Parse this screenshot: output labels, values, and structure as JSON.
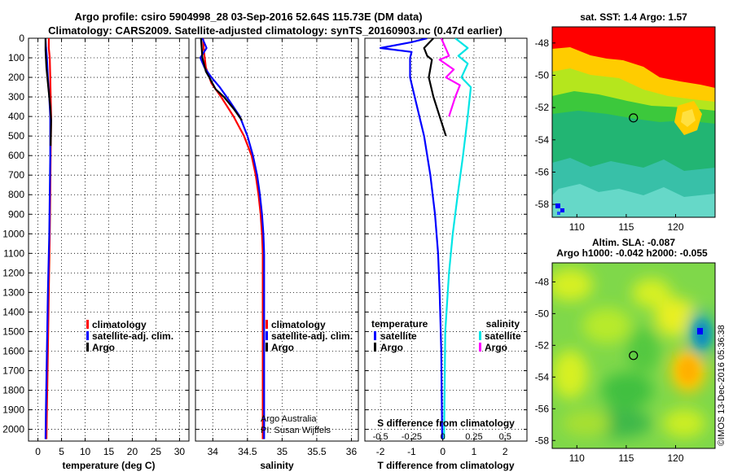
{
  "title_line1": "Argo profile: csiro 5904998_28 03-Sep-2016 52.64S 115.73E (DM data)",
  "title_line2": "Climatology: CARS2009. Satellite-adjusted climatology: synTS_20160903.nc (0.47d earlier)",
  "colors": {
    "climatology": "#ff0000",
    "satellite": "#0000ff",
    "argo": "#000000",
    "sat_salinity": "#00e5e5",
    "argo_salinity": "#ff00ff"
  },
  "depth_ticks": [
    0,
    100,
    200,
    300,
    400,
    500,
    600,
    700,
    800,
    900,
    1000,
    1100,
    1200,
    1300,
    1400,
    1500,
    1600,
    1700,
    1800,
    1900,
    2000
  ],
  "chart_data": [
    {
      "type": "line",
      "id": "temperature",
      "xlabel": "temperature (deg C)",
      "xlim": [
        -2,
        32
      ],
      "ylim": [
        2060,
        0
      ],
      "xticks": [
        0,
        5,
        10,
        15,
        20,
        25,
        30
      ],
      "xtick_labels": [
        "0",
        "5",
        "10",
        "15",
        "20",
        "25",
        "30"
      ],
      "legend": [
        "climatology",
        "satellite-adj. clim.",
        "Argo"
      ],
      "series": [
        {
          "name": "climatology",
          "color": "#ff0000",
          "points": [
            [
              2.3,
              0
            ],
            [
              2.3,
              50
            ],
            [
              2.5,
              100
            ],
            [
              2.6,
              200
            ],
            [
              2.7,
              300
            ],
            [
              2.8,
              400
            ],
            [
              2.7,
              600
            ],
            [
              2.6,
              800
            ],
            [
              2.5,
              1000
            ],
            [
              2.3,
              1300
            ],
            [
              2.1,
              1600
            ],
            [
              1.9,
              1900
            ],
            [
              1.8,
              2050
            ]
          ]
        },
        {
          "name": "satellite-adj. clim.",
          "color": "#0000ff",
          "points": [
            [
              1.6,
              0
            ],
            [
              1.7,
              40
            ],
            [
              1.9,
              100
            ],
            [
              2.1,
              200
            ],
            [
              2.4,
              300
            ],
            [
              2.6,
              400
            ],
            [
              2.6,
              600
            ],
            [
              2.5,
              800
            ],
            [
              2.4,
              1000
            ],
            [
              2.1,
              1300
            ],
            [
              1.9,
              1600
            ],
            [
              1.7,
              1900
            ],
            [
              1.6,
              2050
            ]
          ]
        },
        {
          "name": "Argo",
          "color": "#000000",
          "points": [
            [
              1.6,
              0
            ],
            [
              1.6,
              60
            ],
            [
              1.8,
              150
            ],
            [
              2.2,
              250
            ],
            [
              2.6,
              350
            ],
            [
              2.8,
              420
            ],
            [
              2.7,
              550
            ]
          ]
        }
      ]
    },
    {
      "type": "line",
      "id": "salinity",
      "xlabel": "salinity",
      "xlim": [
        33.75,
        36.1
      ],
      "ylim": [
        2060,
        0
      ],
      "xticks": [
        34,
        34.5,
        35,
        35.5,
        36
      ],
      "xtick_labels": [
        "34",
        "34.5",
        "35",
        "35.5",
        "36"
      ],
      "legend": [
        "climatology",
        "satellite-adj. clim.",
        "Argo"
      ],
      "credit": [
        "Argo Australia",
        "PI: Susan Wijffels"
      ],
      "series": [
        {
          "name": "climatology",
          "color": "#ff0000",
          "points": [
            [
              33.86,
              0
            ],
            [
              33.87,
              60
            ],
            [
              33.9,
              150
            ],
            [
              33.98,
              230
            ],
            [
              34.12,
              300
            ],
            [
              34.3,
              400
            ],
            [
              34.45,
              500
            ],
            [
              34.56,
              600
            ],
            [
              34.62,
              700
            ],
            [
              34.66,
              800
            ],
            [
              34.69,
              900
            ],
            [
              34.71,
              1000
            ],
            [
              34.72,
              1100
            ],
            [
              34.72,
              1500
            ],
            [
              34.72,
              2050
            ]
          ]
        },
        {
          "name": "satellite-adj. clim.",
          "color": "#0000ff",
          "points": [
            [
              33.85,
              0
            ],
            [
              33.91,
              50
            ],
            [
              33.82,
              100
            ],
            [
              33.88,
              150
            ],
            [
              33.98,
              200
            ],
            [
              34.1,
              250
            ],
            [
              34.24,
              320
            ],
            [
              34.39,
              400
            ],
            [
              34.5,
              500
            ],
            [
              34.58,
              600
            ],
            [
              34.64,
              700
            ],
            [
              34.68,
              800
            ],
            [
              34.71,
              900
            ],
            [
              34.73,
              1000
            ],
            [
              34.74,
              1100
            ],
            [
              34.74,
              1500
            ],
            [
              34.74,
              2050
            ]
          ]
        },
        {
          "name": "Argo",
          "color": "#000000",
          "points": [
            [
              33.83,
              0
            ],
            [
              33.85,
              100
            ],
            [
              33.9,
              170
            ],
            [
              33.95,
              200
            ],
            [
              34.04,
              260
            ],
            [
              34.16,
              300
            ],
            [
              34.3,
              360
            ],
            [
              34.42,
              420
            ]
          ]
        }
      ]
    },
    {
      "type": "line",
      "id": "difference",
      "xlabel": "T difference from climatology",
      "xlabel_top": "S difference from climatology",
      "xlim": [
        -2.5,
        2.7
      ],
      "ylim": [
        2060,
        0
      ],
      "xticks": [
        -2,
        -1,
        0,
        1,
        2
      ],
      "xtick_labels": [
        "-2",
        "-1",
        "0",
        "1",
        "2"
      ],
      "top_ticks": [
        -0.5,
        -0.25,
        0,
        0.25,
        0.5
      ],
      "top_tick_labels": [
        "-0.5",
        "-0.25",
        "0",
        "0.25",
        "0.5"
      ],
      "top_scale": 4,
      "legend_temperature": {
        "title": "temperature",
        "items": [
          "satellite",
          "Argo"
        ]
      },
      "legend_salinity": {
        "title": "salinity",
        "items": [
          "satellite",
          "Argo"
        ]
      },
      "series": [
        {
          "name": "T satellite",
          "color": "#0000ff",
          "points": [
            [
              -0.5,
              0
            ],
            [
              -1.0,
              20
            ],
            [
              -2.0,
              50
            ],
            [
              -1.0,
              70
            ],
            [
              -1.05,
              100
            ],
            [
              -1.05,
              200
            ],
            [
              -0.9,
              300
            ],
            [
              -0.6,
              500
            ],
            [
              -0.4,
              700
            ],
            [
              -0.25,
              900
            ],
            [
              -0.15,
              1100
            ],
            [
              -0.1,
              1300
            ],
            [
              -0.05,
              1600
            ],
            [
              -0.02,
              2050
            ]
          ]
        },
        {
          "name": "T Argo",
          "color": "#000000",
          "points": [
            [
              -0.3,
              0
            ],
            [
              -0.6,
              50
            ],
            [
              -0.5,
              90
            ],
            [
              -0.35,
              110
            ],
            [
              -0.45,
              200
            ],
            [
              -0.3,
              300
            ],
            [
              -0.1,
              400
            ],
            [
              0.1,
              500
            ]
          ]
        },
        {
          "name": "S satellite",
          "color": "#00e5e5",
          "points": [
            [
              0.4,
              0
            ],
            [
              0.8,
              50
            ],
            [
              0.5,
              90
            ],
            [
              0.8,
              130
            ],
            [
              0.6,
              200
            ],
            [
              0.9,
              250
            ],
            [
              0.8,
              400
            ],
            [
              0.65,
              600
            ],
            [
              0.48,
              800
            ],
            [
              0.32,
              1000
            ],
            [
              0.2,
              1200
            ],
            [
              0.08,
              1500
            ],
            [
              0.04,
              2050
            ]
          ]
        },
        {
          "name": "S Argo",
          "color": "#ff00ff",
          "points": [
            [
              -0.05,
              0
            ],
            [
              0.2,
              90
            ],
            [
              -0.1,
              110
            ],
            [
              0.35,
              160
            ],
            [
              0.1,
              200
            ],
            [
              0.55,
              240
            ],
            [
              0.4,
              300
            ],
            [
              0.2,
              400
            ]
          ]
        }
      ]
    },
    {
      "type": "heatmap",
      "id": "sst_map",
      "title": "sat. SST: 1.4 Argo: 1.57",
      "xlim": [
        107.5,
        124
      ],
      "ylim": [
        -58.8,
        -47
      ],
      "xticks": [
        110,
        115,
        120
      ],
      "xtick_labels": [
        "110",
        "115",
        "120"
      ],
      "yticks": [
        -48,
        -50,
        -52,
        -54,
        -56,
        -58
      ],
      "ytick_labels": [
        "-48",
        "-50",
        "-52",
        "-54",
        "-56",
        "-58"
      ],
      "marker": [
        115.73,
        -52.64
      ]
    },
    {
      "type": "heatmap",
      "id": "sla_map",
      "title": "Altim. SLA: -0.087",
      "subtitle": "Argo h1000: -0.042 h2000: -0.055",
      "xlim": [
        107.5,
        124
      ],
      "ylim": [
        -58.5,
        -46.8
      ],
      "xticks": [
        110,
        115,
        120
      ],
      "xtick_labels": [
        "110",
        "115",
        "120"
      ],
      "yticks": [
        -48,
        -50,
        -52,
        -54,
        -56,
        -58
      ],
      "ytick_labels": [
        "-48",
        "-50",
        "-52",
        "-54",
        "-56",
        "-58"
      ],
      "marker": [
        115.73,
        -52.64
      ]
    }
  ],
  "footer": "©IMOS 13-Dec-2016 05:36:38"
}
